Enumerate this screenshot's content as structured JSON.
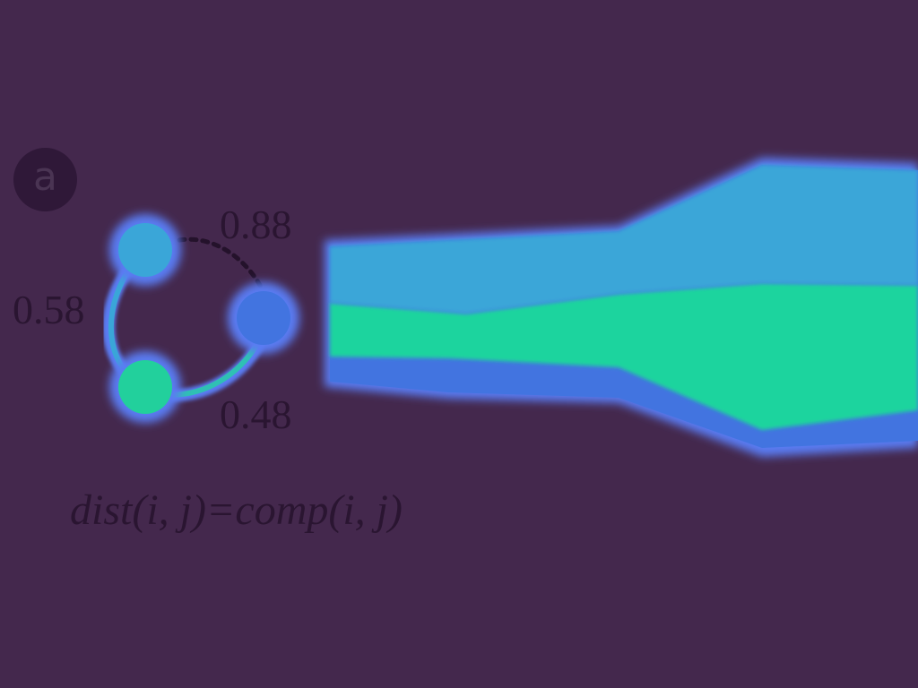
{
  "panel_label": "a",
  "graph": {
    "edge_weights": {
      "top_right": "0.88",
      "top_bottom": "0.58",
      "bottom_right": "0.48"
    },
    "node_colors": {
      "top": "#3aa6d8",
      "right": "#4274e0",
      "bottom": "#22d09c"
    }
  },
  "formula": "dist(i, j)=comp(i, j)",
  "band_colors": {
    "upper": "#3aa6d8",
    "middle": "#1ed49e",
    "lower": "#4274e0",
    "glow": "#5a7cf2"
  },
  "background_color": "#44284d"
}
